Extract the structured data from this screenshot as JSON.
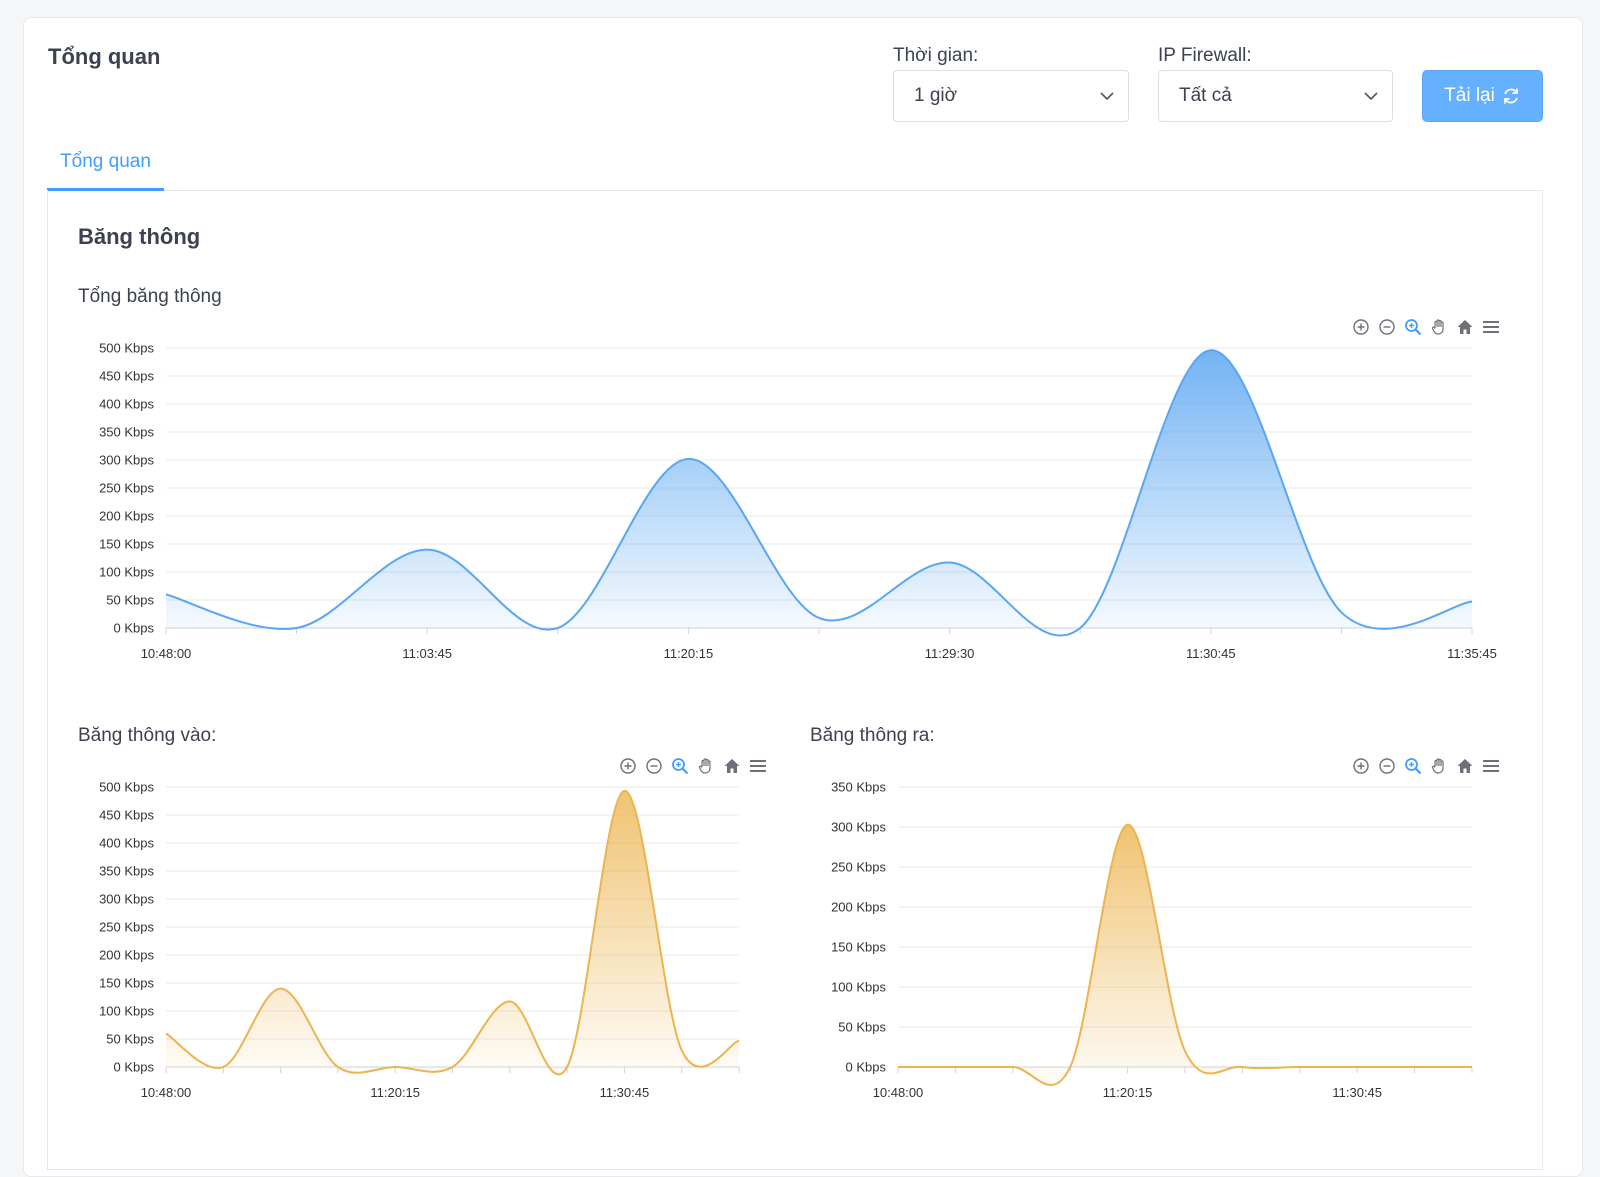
{
  "header": {
    "title": "Tổng quan",
    "time_label": "Thời gian:",
    "time_value": "1 giờ",
    "firewall_label": "IP Firewall:",
    "firewall_value": "Tất cả",
    "reload_label": "Tải lại"
  },
  "tabs": [
    {
      "label": "Tổng quan",
      "active": true
    }
  ],
  "section": {
    "title": "Băng thông"
  },
  "icons": [
    "zoom-in-icon",
    "zoom-out-icon",
    "selection-zoom-icon",
    "pan-hand-icon",
    "reset-home-icon",
    "menu-icon"
  ],
  "colors": {
    "accent": "#409eff",
    "button": "#66b1ff",
    "line_blue": "#5aa6f2",
    "line_orange": "#ecb44e"
  },
  "chart_data": [
    {
      "type": "area",
      "title": "Tổng băng thông",
      "x": [
        "10:48:00",
        "",
        "11:03:45",
        "",
        "11:20:15",
        "",
        "11:29:30",
        "",
        "11:30:45",
        "",
        "11:35:45"
      ],
      "xtick_labels": [
        "10:48:00",
        "11:03:45",
        "11:20:15",
        "11:29:30",
        "11:30:45",
        "11:35:45"
      ],
      "ylim": [
        0,
        500
      ],
      "yticks": [
        0,
        50,
        100,
        150,
        200,
        250,
        300,
        350,
        400,
        450,
        500
      ],
      "yunit": "Kbps",
      "series": [
        {
          "values": [
            60,
            0,
            140,
            0,
            302,
            18,
            117,
            0,
            496,
            28,
            47
          ]
        }
      ]
    },
    {
      "type": "area",
      "title": "Băng thông vào:",
      "x": [
        "10:48:00",
        "",
        "",
        "",
        "11:20:15",
        "",
        "",
        "",
        "11:30:45",
        "",
        ""
      ],
      "xtick_labels": [
        "10:48:00",
        "11:20:15",
        "11:30:45"
      ],
      "ylim": [
        0,
        500
      ],
      "yticks": [
        0,
        50,
        100,
        150,
        200,
        250,
        300,
        350,
        400,
        450,
        500
      ],
      "yunit": "Kbps",
      "series": [
        {
          "values": [
            60,
            0,
            140,
            0,
            0,
            0,
            117,
            0,
            493,
            30,
            47
          ]
        }
      ]
    },
    {
      "type": "area",
      "title": "Băng thông ra:",
      "x": [
        "10:48:00",
        "",
        "",
        "",
        "11:20:15",
        "",
        "",
        "",
        "11:30:45",
        "",
        ""
      ],
      "xtick_labels": [
        "10:48:00",
        "11:20:15",
        "11:30:45"
      ],
      "ylim": [
        0,
        350
      ],
      "yticks": [
        0,
        50,
        100,
        150,
        200,
        250,
        300,
        350
      ],
      "yunit": "Kbps",
      "series": [
        {
          "values": [
            0,
            0,
            0,
            0,
            303,
            20,
            0,
            0,
            0,
            0,
            0
          ]
        }
      ]
    }
  ]
}
